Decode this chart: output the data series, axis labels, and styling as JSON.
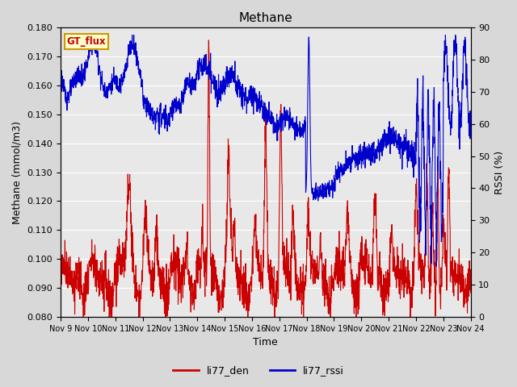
{
  "title": "Methane",
  "ylabel_left": "Methane (mmol/m3)",
  "ylabel_right": "RSSI (%)",
  "xlabel": "Time",
  "ylim_left": [
    0.08,
    0.18
  ],
  "ylim_right": [
    0,
    90
  ],
  "yticks_left": [
    0.08,
    0.09,
    0.1,
    0.11,
    0.12,
    0.13,
    0.14,
    0.15,
    0.16,
    0.17,
    0.18
  ],
  "yticks_right": [
    0,
    10,
    20,
    30,
    40,
    50,
    60,
    70,
    80,
    90
  ],
  "xtick_labels": [
    "Nov 9",
    "Nov 10",
    "Nov 11",
    "Nov 12",
    "Nov 13",
    "Nov 14",
    "Nov 15",
    "Nov 16",
    "Nov 17",
    "Nov 18",
    "Nov 19",
    "Nov 20",
    "Nov 21",
    "Nov 22",
    "Nov 23",
    "Nov 24"
  ],
  "color_den": "#cc0000",
  "color_rssi": "#0000cc",
  "legend_label_den": "li77_den",
  "legend_label_rssi": "li77_rssi",
  "gt_flux_label": "GT_flux",
  "gt_flux_bg": "#ffffcc",
  "gt_flux_border": "#cc9900",
  "gt_flux_text_color": "#cc0000",
  "background_color": "#e8e8e8",
  "grid_color": "#ffffff",
  "linewidth": 0.8,
  "title_fontsize": 11
}
